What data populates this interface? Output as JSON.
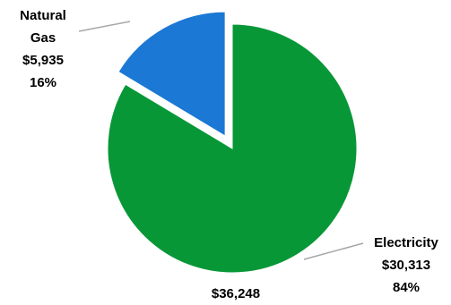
{
  "chart_data": {
    "type": "pie",
    "categories": [
      "Natural Gas",
      "Electricity"
    ],
    "values": [
      5935,
      30313
    ],
    "percent_labels": [
      "16%",
      "84%"
    ],
    "value_labels": [
      "$5,935",
      "$30,313"
    ],
    "total_label": "$36,248",
    "colors": [
      "#1b78d4",
      "#089737"
    ],
    "exploded": [
      "Natural Gas"
    ],
    "legend": "none",
    "title": ""
  },
  "labels": {
    "natural_gas_line1": "Natural",
    "natural_gas_line2": "Gas",
    "natural_gas_value": "$5,935",
    "natural_gas_pct": "16%",
    "electricity_name": "Electricity",
    "electricity_value": "$30,313",
    "electricity_pct": "84%",
    "total": "$36,248"
  }
}
